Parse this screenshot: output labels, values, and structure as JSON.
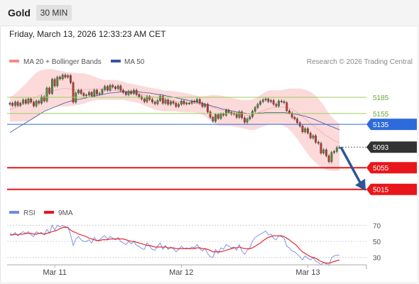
{
  "header": {
    "symbol": "Gold",
    "timeframe": "30 MIN",
    "datetime": "Friday, March 13, 2026 12:33:23 AM CET"
  },
  "colors": {
    "bollinger": "#f48a8a",
    "ma50": "#36569e",
    "resistance": "#9ccd5f",
    "pivot": "#2d6bdc",
    "support": "#e8161a",
    "current": "#333333",
    "arrow": "#2e5597",
    "rsi": "#6d8be3",
    "rsi_ma": "#e8161a"
  },
  "chart_data": [
    {
      "type": "candlestick",
      "legend": [
        {
          "label": "MA 20 + Bollinger Bands",
          "color": "#f48a8a",
          "icon": "legend-swatch-red"
        },
        {
          "label": "MA 50",
          "color": "#36569e",
          "icon": "legend-swatch-blue"
        }
      ],
      "credit": "Research © 2026 Trading Central",
      "ylim": [
        4995,
        5240
      ],
      "x_ticks": [
        "Mar 11",
        "Mar 12",
        "Mar 13"
      ],
      "x_tick_index": [
        17,
        65,
        113
      ],
      "n_bars": 126,
      "levels": [
        {
          "value": 5185,
          "label": "5185",
          "kind": "resistance"
        },
        {
          "value": 5155,
          "label": "5155",
          "kind": "resistance"
        },
        {
          "value": 5135,
          "label": "5135",
          "kind": "pivot"
        },
        {
          "value": 5093,
          "label": "5093",
          "kind": "current"
        },
        {
          "value": 5055,
          "label": "5055",
          "kind": "support"
        },
        {
          "value": 5015,
          "label": "5015",
          "kind": "support"
        }
      ],
      "closes": [
        5174,
        5170,
        5176,
        5170,
        5174,
        5180,
        5174,
        5182,
        5176,
        5169,
        5178,
        5174,
        5186,
        5178,
        5202,
        5192,
        5218,
        5206,
        5222,
        5219,
        5226,
        5222,
        5225,
        5212,
        5176,
        5193,
        5198,
        5192,
        5188,
        5189,
        5194,
        5188,
        5198,
        5191,
        5192,
        5199,
        5205,
        5198,
        5207,
        5204,
        5201,
        5206,
        5198,
        5194,
        5190,
        5196,
        5192,
        5198,
        5190,
        5186,
        5182,
        5177,
        5186,
        5181,
        5176,
        5173,
        5179,
        5187,
        5174,
        5180,
        5172,
        5177,
        5174,
        5168,
        5172,
        5178,
        5173,
        5174,
        5174,
        5178,
        5176,
        5181,
        5174,
        5168,
        5172,
        5158,
        5148,
        5141,
        5153,
        5146,
        5154,
        5152,
        5161,
        5157,
        5154,
        5155,
        5148,
        5158,
        5147,
        5139,
        5145,
        5149,
        5159,
        5166,
        5172,
        5177,
        5180,
        5182,
        5177,
        5179,
        5172,
        5169,
        5178,
        5177,
        5175,
        5160,
        5156,
        5148,
        5145,
        5138,
        5132,
        5121,
        5127,
        5119,
        5110,
        5114,
        5102,
        5100,
        5082,
        5088,
        5077,
        5066,
        5083,
        5085,
        5092,
        5093
      ],
      "ma20": [
        5162,
        5164,
        5166,
        5168,
        5170,
        5172,
        5174,
        5176,
        5179,
        5182,
        5185,
        5188,
        5190,
        5192,
        5194,
        5196,
        5197,
        5198,
        5199,
        5200,
        5201,
        5201,
        5201,
        5200,
        5199,
        5199,
        5198,
        5198,
        5199,
        5199,
        5200,
        5200,
        5200,
        5200,
        5200,
        5199,
        5199,
        5198,
        5198,
        5198,
        5198,
        5197,
        5197,
        5196,
        5195,
        5194,
        5193,
        5193,
        5192,
        5191,
        5190,
        5189,
        5188,
        5187,
        5186,
        5185,
        5184,
        5183,
        5182,
        5181,
        5180,
        5179,
        5178,
        5177,
        5176,
        5176,
        5175,
        5175,
        5174,
        5174,
        5174,
        5173,
        5173,
        5172,
        5171,
        5170,
        5168,
        5166,
        5164,
        5162,
        5161,
        5160,
        5159,
        5158,
        5157,
        5156,
        5155,
        5154,
        5153,
        5152,
        5152,
        5152,
        5153,
        5154,
        5156,
        5158,
        5160,
        5162,
        5164,
        5165,
        5166,
        5167,
        5167,
        5167,
        5167,
        5166,
        5165,
        5163,
        5160,
        5157,
        5153,
        5149,
        5145,
        5141,
        5137,
        5133,
        5129,
        5125,
        5121,
        5117,
        5114,
        5111,
        5108,
        5105,
        5103,
        5101
      ],
      "bb_upper": [
        5185,
        5188,
        5192,
        5196,
        5200,
        5205,
        5210,
        5215,
        5221,
        5226,
        5230,
        5233,
        5235,
        5236,
        5237,
        5237,
        5237,
        5236,
        5235,
        5234,
        5233,
        5232,
        5231,
        5231,
        5230,
        5230,
        5229,
        5229,
        5229,
        5228,
        5227,
        5225,
        5223,
        5221,
        5219,
        5218,
        5217,
        5217,
        5217,
        5217,
        5217,
        5216,
        5215,
        5214,
        5212,
        5211,
        5210,
        5209,
        5208,
        5207,
        5206,
        5205,
        5204,
        5203,
        5202,
        5201,
        5200,
        5199,
        5198,
        5197,
        5197,
        5197,
        5196,
        5196,
        5195,
        5194,
        5193,
        5192,
        5191,
        5190,
        5189,
        5188,
        5187,
        5187,
        5187,
        5188,
        5189,
        5189,
        5189,
        5189,
        5188,
        5187,
        5186,
        5185,
        5184,
        5183,
        5182,
        5181,
        5180,
        5180,
        5180,
        5180,
        5181,
        5183,
        5186,
        5189,
        5192,
        5195,
        5197,
        5198,
        5198,
        5198,
        5198,
        5198,
        5199,
        5200,
        5201,
        5201,
        5201,
        5201,
        5201,
        5200,
        5199,
        5197,
        5195,
        5192,
        5188,
        5183,
        5177,
        5170,
        5163,
        5155,
        5149,
        5144,
        5140,
        5137
      ],
      "bb_lower": [
        5140,
        5140,
        5140,
        5140,
        5140,
        5140,
        5140,
        5141,
        5143,
        5145,
        5148,
        5151,
        5155,
        5159,
        5162,
        5164,
        5166,
        5167,
        5168,
        5168,
        5168,
        5168,
        5168,
        5169,
        5169,
        5170,
        5171,
        5172,
        5173,
        5175,
        5177,
        5178,
        5179,
        5180,
        5180,
        5180,
        5180,
        5180,
        5180,
        5180,
        5180,
        5180,
        5180,
        5180,
        5179,
        5178,
        5177,
        5176,
        5175,
        5174,
        5172,
        5170,
        5168,
        5166,
        5164,
        5162,
        5161,
        5160,
        5160,
        5159,
        5159,
        5159,
        5159,
        5159,
        5158,
        5158,
        5157,
        5157,
        5157,
        5157,
        5157,
        5156,
        5155,
        5153,
        5150,
        5146,
        5142,
        5138,
        5135,
        5133,
        5132,
        5132,
        5132,
        5132,
        5132,
        5131,
        5130,
        5129,
        5128,
        5127,
        5126,
        5125,
        5124,
        5125,
        5127,
        5129,
        5131,
        5133,
        5134,
        5135,
        5135,
        5135,
        5135,
        5134,
        5132,
        5129,
        5125,
        5120,
        5114,
        5108,
        5101,
        5094,
        5087,
        5080,
        5074,
        5069,
        5064,
        5060,
        5056,
        5053,
        5051,
        5050,
        5049,
        5049,
        5049,
        5050
      ],
      "ma50": [
        5120,
        5123,
        5126,
        5129,
        5132,
        5135,
        5138,
        5141,
        5144,
        5147,
        5150,
        5153,
        5156,
        5159,
        5161,
        5163,
        5165,
        5167,
        5169,
        5171,
        5173,
        5175,
        5176,
        5178,
        5179,
        5180,
        5181,
        5182,
        5183,
        5184,
        5185,
        5186,
        5187,
        5188,
        5189,
        5190,
        5191,
        5192,
        5193,
        5193,
        5194,
        5194,
        5195,
        5195,
        5195,
        5195,
        5195,
        5195,
        5195,
        5195,
        5194,
        5194,
        5193,
        5193,
        5192,
        5191,
        5190,
        5190,
        5189,
        5188,
        5187,
        5186,
        5185,
        5184,
        5183,
        5182,
        5181,
        5180,
        5179,
        5178,
        5177,
        5176,
        5175,
        5174,
        5172,
        5171,
        5170,
        5168,
        5167,
        5166,
        5164,
        5163,
        5162,
        5161,
        5160,
        5159,
        5158,
        5157,
        5156,
        5156,
        5155,
        5155,
        5155,
        5155,
        5156,
        5156,
        5156,
        5157,
        5157,
        5157,
        5157,
        5157,
        5157,
        5157,
        5157,
        5156,
        5156,
        5155,
        5154,
        5153,
        5152,
        5151,
        5150,
        5148,
        5147,
        5145,
        5143,
        5141,
        5139,
        5137,
        5135,
        5133,
        5131,
        5129,
        5127,
        5125
      ]
    },
    {
      "type": "line",
      "legend": [
        {
          "label": "RSI",
          "color": "#6d8be3",
          "icon": "legend-swatch-blue"
        },
        {
          "label": "9MA",
          "color": "#e8161a",
          "icon": "legend-swatch-red"
        }
      ],
      "ylim": [
        20,
        80
      ],
      "y_ticks": [
        70,
        50,
        30
      ],
      "rsi": [
        60,
        58,
        61,
        57,
        60,
        62,
        60,
        62,
        58,
        56,
        62,
        60,
        61,
        58,
        65,
        60,
        70,
        64,
        70,
        68,
        70,
        67,
        68,
        58,
        45,
        53,
        56,
        52,
        50,
        50,
        52,
        48,
        55,
        51,
        52,
        55,
        57,
        53,
        56,
        54,
        52,
        55,
        50,
        48,
        46,
        50,
        47,
        50,
        45,
        44,
        41,
        40,
        48,
        44,
        40,
        39,
        44,
        48,
        40,
        45,
        40,
        43,
        41,
        37,
        40,
        44,
        41,
        42,
        41,
        43,
        42,
        46,
        41,
        38,
        41,
        35,
        31,
        30,
        40,
        35,
        42,
        40,
        46,
        44,
        42,
        43,
        39,
        46,
        38,
        34,
        39,
        42,
        50,
        55,
        57,
        59,
        61,
        63,
        58,
        59,
        54,
        52,
        57,
        56,
        54,
        44,
        42,
        38,
        37,
        34,
        31,
        27,
        32,
        29,
        27,
        30,
        25,
        24,
        21,
        24,
        22,
        20,
        30,
        32,
        33,
        33
      ],
      "ma9": [
        58,
        58,
        59,
        58,
        59,
        59,
        60,
        60,
        60,
        59,
        59,
        60,
        60,
        59,
        60,
        61,
        62,
        63,
        64,
        66,
        67,
        68,
        67,
        64,
        62,
        61,
        59,
        58,
        57,
        56,
        54,
        53,
        52,
        51,
        51,
        52,
        52,
        52,
        53,
        53,
        53,
        53,
        53,
        53,
        52,
        51,
        50,
        50,
        49,
        48,
        47,
        46,
        45,
        45,
        44,
        43,
        43,
        43,
        43,
        43,
        42,
        42,
        42,
        41,
        41,
        41,
        41,
        41,
        41,
        41,
        41,
        42,
        42,
        41,
        41,
        40,
        39,
        37,
        37,
        37,
        37,
        38,
        39,
        40,
        41,
        42,
        42,
        43,
        42,
        41,
        41,
        41,
        42,
        44,
        46,
        48,
        51,
        53,
        55,
        56,
        57,
        57,
        57,
        57,
        56,
        54,
        52,
        49,
        47,
        44,
        40,
        37,
        35,
        33,
        31,
        30,
        29,
        27,
        25,
        24,
        23,
        23,
        24,
        25,
        26,
        27
      ]
    }
  ]
}
